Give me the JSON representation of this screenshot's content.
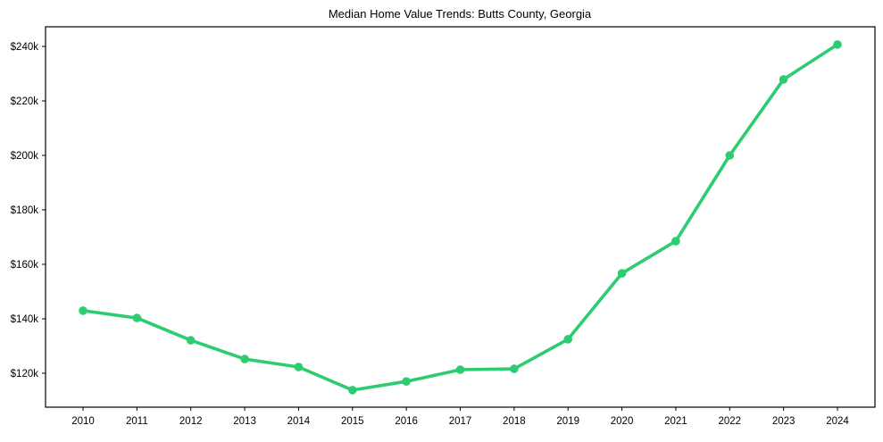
{
  "chart_data": {
    "type": "line",
    "title": "Median Home Value Trends: Butts County, Georgia",
    "xlabel": "",
    "ylabel": "",
    "x": [
      2010,
      2011,
      2012,
      2013,
      2014,
      2015,
      2016,
      2017,
      2018,
      2019,
      2020,
      2021,
      2022,
      2023,
      2024
    ],
    "series": [
      {
        "name": "Median Home Value",
        "values": [
          143000,
          140300,
          132100,
          125200,
          122300,
          113800,
          117000,
          121300,
          121600,
          132500,
          156700,
          168500,
          200000,
          227900,
          240700
        ],
        "color": "#2ecc71",
        "marker": "circle"
      }
    ],
    "x_tick_labels": [
      "2010",
      "2011",
      "2012",
      "2013",
      "2014",
      "2015",
      "2016",
      "2017",
      "2018",
      "2019",
      "2020",
      "2021",
      "2022",
      "2023",
      "2024"
    ],
    "y_ticks": [
      120000,
      140000,
      160000,
      180000,
      200000,
      220000,
      240000
    ],
    "y_tick_labels": [
      "$120k",
      "$140k",
      "$160k",
      "$180k",
      "$200k",
      "$220k",
      "$240k"
    ],
    "ylim": [
      107500,
      247200
    ],
    "xlim": [
      2009.3,
      2024.7
    ],
    "grid": false,
    "legend": false
  }
}
